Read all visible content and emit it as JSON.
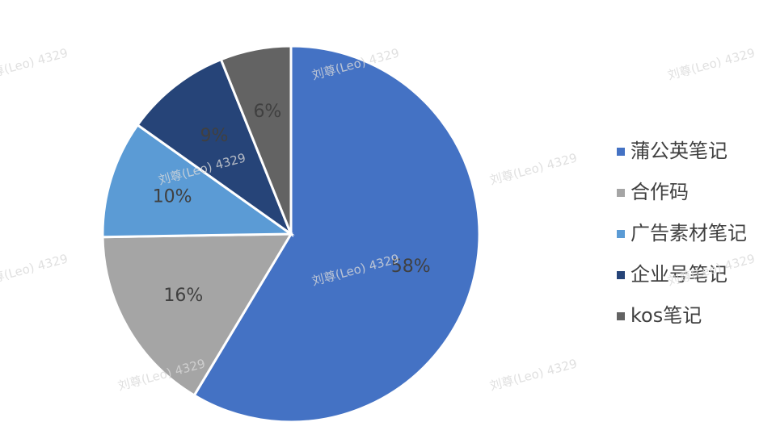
{
  "chart_data": {
    "type": "pie",
    "categories": [
      "蒲公英笔记",
      "合作码",
      "广告素材笔记",
      "企业号笔记",
      "kos笔记"
    ],
    "values": [
      58,
      16,
      10,
      9,
      6
    ],
    "value_labels": [
      "58%",
      "16%",
      "10%",
      "9%",
      "6%"
    ],
    "colors": [
      "#4472c4",
      "#a5a5a5",
      "#5b9bd5",
      "#264478",
      "#636363"
    ],
    "legend": "right",
    "watermark": "刘尊(Leo) 4329"
  }
}
